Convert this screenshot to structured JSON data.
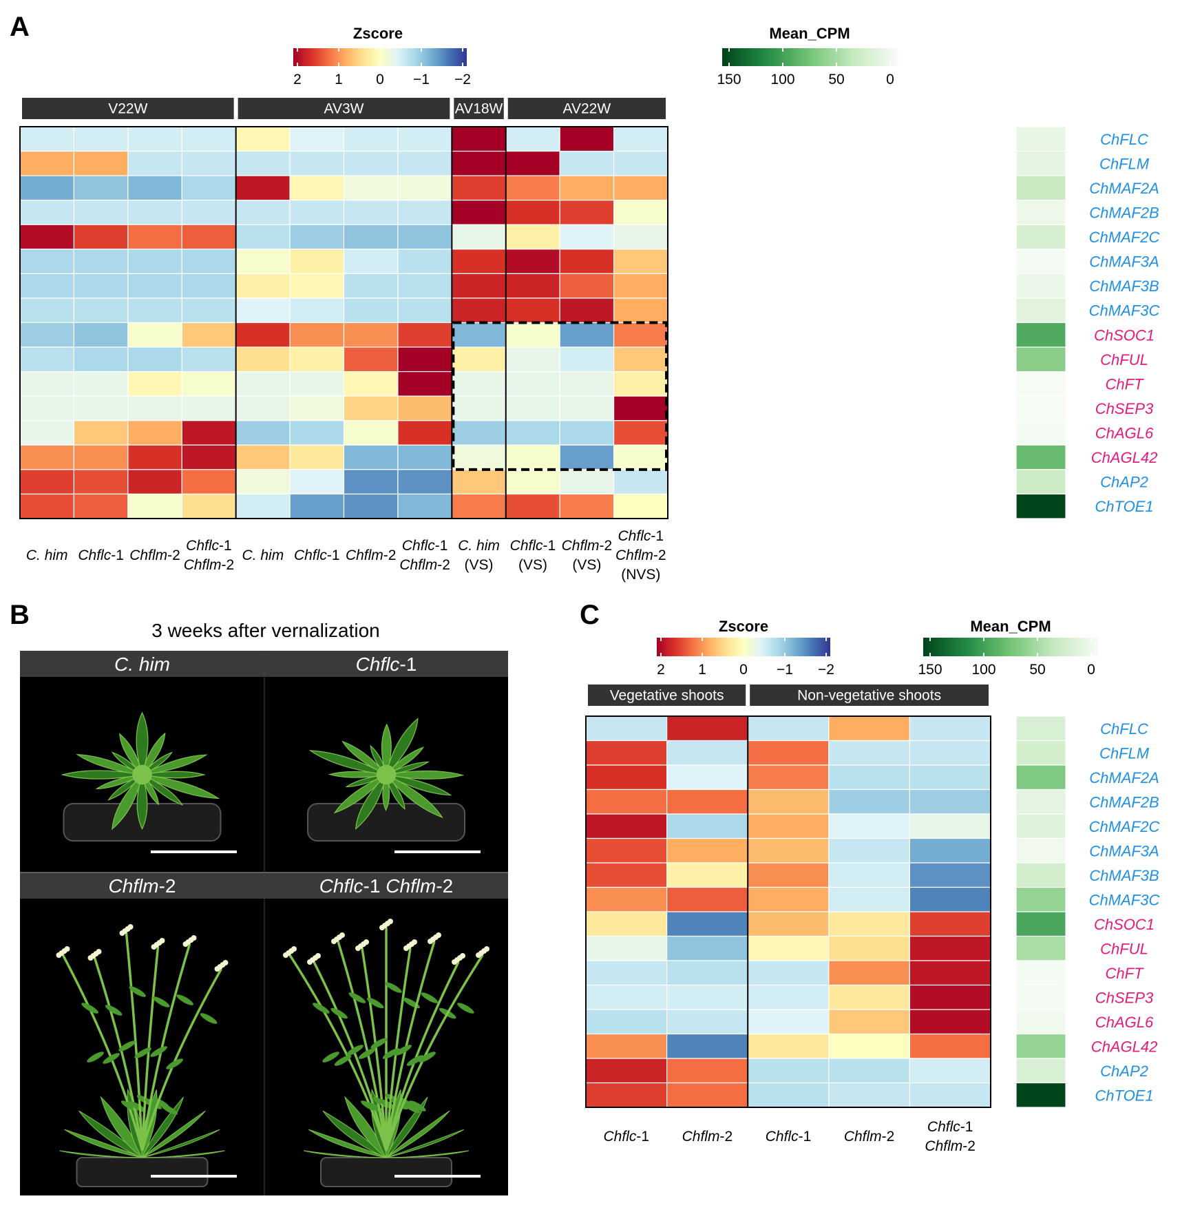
{
  "panel_letters": {
    "a": "A",
    "b": "B",
    "c": "C"
  },
  "legends": {
    "zscore_title": "Zscore",
    "zscore_ticks": [
      "2",
      "1",
      "0",
      "−1",
      "−2"
    ],
    "cpm_title": "Mean_CPM",
    "cpm_ticks": [
      "150",
      "100",
      "50",
      "0"
    ]
  },
  "colors": {
    "zscore_scale": [
      "#a50026",
      "#d73027",
      "#f46d43",
      "#fdae61",
      "#fee090",
      "#ffffbf",
      "#e0f3f8",
      "#abd9e9",
      "#74add1",
      "#4575b4",
      "#313695"
    ],
    "cpm_scale": [
      "#f7fcf5",
      "#c7e9c0",
      "#74c476",
      "#238b45",
      "#00441b"
    ],
    "gene_blue": "#1f8fe6",
    "gene_pink": "#e6197d",
    "strip": "#333333"
  },
  "panel_b": {
    "title": "3 weeks after vernalization",
    "photos": [
      {
        "label_parts": [
          {
            "t": "C. him",
            "i": true
          }
        ],
        "type": "rosette"
      },
      {
        "label_parts": [
          {
            "t": "Chflc",
            "i": true
          },
          {
            "t": "-1",
            "i": false
          }
        ],
        "type": "rosette"
      },
      {
        "label_parts": [
          {
            "t": "Chflm",
            "i": true
          },
          {
            "t": "-2",
            "i": false
          }
        ],
        "type": "flowering"
      },
      {
        "label_parts": [
          {
            "t": "Chflc",
            "i": true
          },
          {
            "t": "-1 ",
            "i": false
          },
          {
            "t": "Chflm",
            "i": true
          },
          {
            "t": "-2",
            "i": false
          }
        ],
        "type": "flowering"
      }
    ]
  },
  "chart_data": [
    {
      "type": "heatmap",
      "panel": "A",
      "groups": [
        {
          "label": "V22W",
          "columns": 4
        },
        {
          "label": "AV3W",
          "columns": 4
        },
        {
          "label": "AV18W",
          "columns": 1
        },
        {
          "label": "AV22W",
          "columns": 3
        }
      ],
      "columns": [
        {
          "lines": [
            [
              {
                "t": "C. him",
                "i": true
              }
            ]
          ]
        },
        {
          "lines": [
            [
              {
                "t": "Chflc",
                "i": true
              },
              {
                "t": "-1",
                "i": false
              }
            ]
          ]
        },
        {
          "lines": [
            [
              {
                "t": "Chflm",
                "i": true
              },
              {
                "t": "-2",
                "i": false
              }
            ]
          ]
        },
        {
          "lines": [
            [
              {
                "t": "Chflc",
                "i": true
              },
              {
                "t": "-1",
                "i": false
              }
            ],
            [
              {
                "t": "Chflm",
                "i": true
              },
              {
                "t": "-2",
                "i": false
              }
            ]
          ]
        },
        {
          "lines": [
            [
              {
                "t": "C. him",
                "i": true
              }
            ]
          ]
        },
        {
          "lines": [
            [
              {
                "t": "Chflc",
                "i": true
              },
              {
                "t": "-1",
                "i": false
              }
            ]
          ]
        },
        {
          "lines": [
            [
              {
                "t": "Chflm",
                "i": true
              },
              {
                "t": "-2",
                "i": false
              }
            ]
          ]
        },
        {
          "lines": [
            [
              {
                "t": "Chflc",
                "i": true
              },
              {
                "t": "-1",
                "i": false
              }
            ],
            [
              {
                "t": "Chflm",
                "i": true
              },
              {
                "t": "-2",
                "i": false
              }
            ]
          ]
        },
        {
          "lines": [
            [
              {
                "t": "C. him",
                "i": true
              }
            ],
            [
              {
                "t": "(VS)",
                "i": false
              }
            ]
          ]
        },
        {
          "lines": [
            [
              {
                "t": "Chflc",
                "i": true
              },
              {
                "t": "-1",
                "i": false
              }
            ],
            [
              {
                "t": "(VS)",
                "i": false
              }
            ]
          ]
        },
        {
          "lines": [
            [
              {
                "t": "Chflm",
                "i": true
              },
              {
                "t": "-2",
                "i": false
              }
            ],
            [
              {
                "t": "(VS)",
                "i": false
              }
            ]
          ]
        },
        {
          "lines": [
            [
              {
                "t": "Chflc",
                "i": true
              },
              {
                "t": "-1",
                "i": false
              }
            ],
            [
              {
                "t": "Chflm",
                "i": true
              },
              {
                "t": "-2",
                "i": false
              }
            ],
            [
              {
                "t": "(NVS)",
                "i": false
              }
            ]
          ]
        }
      ],
      "genes": [
        "ChFLC",
        "ChFLM",
        "ChMAF2A",
        "ChMAF2B",
        "ChMAF2C",
        "ChMAF3A",
        "ChMAF3B",
        "ChMAF3C",
        "ChSOC1",
        "ChFUL",
        "ChFT",
        "ChSEP3",
        "ChAGL6",
        "ChAGL42",
        "ChAP2",
        "ChTOE1"
      ],
      "gene_groups": [
        "blue",
        "blue",
        "blue",
        "blue",
        "blue",
        "blue",
        "blue",
        "blue",
        "pink",
        "pink",
        "pink",
        "pink",
        "pink",
        "pink",
        "blue",
        "blue"
      ],
      "zscore": [
        [
          -0.5,
          -0.5,
          -0.5,
          -0.5,
          0.1,
          -0.4,
          -0.5,
          -0.5,
          2.0,
          -0.5,
          2.0,
          -0.5
        ],
        [
          0.8,
          0.8,
          -0.6,
          -0.6,
          -0.6,
          -0.6,
          -0.6,
          -0.6,
          2.0,
          2.0,
          -0.6,
          -0.6
        ],
        [
          -1.2,
          -1.0,
          -1.1,
          -0.8,
          1.8,
          0.1,
          -0.2,
          -0.2,
          1.5,
          1.1,
          0.8,
          0.8
        ],
        [
          -0.6,
          -0.6,
          -0.6,
          -0.6,
          -0.6,
          -0.6,
          -0.6,
          -0.6,
          2.0,
          1.6,
          1.5,
          -0.1
        ],
        [
          1.9,
          1.5,
          1.2,
          1.3,
          -0.7,
          -0.9,
          -1.0,
          -1.0,
          -0.3,
          0.2,
          -0.4,
          -0.3
        ],
        [
          -0.8,
          -0.8,
          -0.8,
          -0.8,
          -0.1,
          0.2,
          -0.5,
          -0.7,
          1.6,
          1.9,
          1.6,
          0.6
        ],
        [
          -0.8,
          -0.8,
          -0.8,
          -0.8,
          0.2,
          0.1,
          -0.7,
          -0.7,
          1.7,
          1.7,
          1.3,
          0.8
        ],
        [
          -0.7,
          -0.7,
          -0.7,
          -0.7,
          -0.4,
          -0.5,
          -0.7,
          -0.7,
          1.7,
          1.6,
          1.8,
          0.8
        ],
        [
          -0.9,
          -1.0,
          -0.1,
          0.6,
          1.6,
          1.0,
          1.0,
          1.5,
          -1.1,
          -0.1,
          -1.3,
          1.1
        ],
        [
          -0.7,
          -0.8,
          -0.8,
          -0.7,
          0.4,
          0.2,
          1.3,
          2.0,
          0.2,
          -0.3,
          -0.5,
          0.6
        ],
        [
          -0.3,
          -0.3,
          0.1,
          -0.1,
          -0.3,
          -0.3,
          0.1,
          2.0,
          -0.3,
          -0.3,
          -0.3,
          0.2
        ],
        [
          -0.3,
          -0.3,
          -0.3,
          -0.3,
          -0.3,
          -0.2,
          0.5,
          0.7,
          -0.3,
          -0.3,
          -0.3,
          2.0
        ],
        [
          -0.3,
          0.6,
          0.8,
          1.8,
          -0.9,
          -0.8,
          -0.1,
          1.6,
          -0.9,
          -0.8,
          -0.8,
          1.4
        ],
        [
          1.0,
          1.0,
          1.6,
          1.8,
          0.6,
          0.3,
          -1.1,
          -1.1,
          -0.2,
          -0.1,
          -1.3,
          -0.1
        ],
        [
          1.5,
          1.4,
          1.7,
          1.2,
          -0.2,
          -0.4,
          -1.4,
          -1.4,
          0.6,
          -0.1,
          -0.3,
          -0.6
        ],
        [
          1.4,
          1.3,
          -0.1,
          0.4,
          -0.5,
          -1.3,
          -1.4,
          -1.1,
          1.1,
          1.4,
          1.1,
          0.0
        ]
      ],
      "mean_cpm": [
        12,
        14,
        35,
        8,
        26,
        3,
        9,
        17,
        92,
        65,
        1,
        1,
        2,
        80,
        33,
        150
      ],
      "highlight_box": {
        "rows": [
          8,
          13
        ],
        "cols": [
          8,
          11
        ]
      }
    },
    {
      "type": "heatmap",
      "panel": "C",
      "groups": [
        {
          "label": "Vegetative shoots",
          "columns": 2
        },
        {
          "label": "Non-vegetative shoots",
          "columns": 3
        }
      ],
      "columns": [
        {
          "lines": [
            [
              {
                "t": "Chflc",
                "i": true
              },
              {
                "t": "-1",
                "i": false
              }
            ]
          ]
        },
        {
          "lines": [
            [
              {
                "t": "Chflm",
                "i": true
              },
              {
                "t": "-2",
                "i": false
              }
            ]
          ]
        },
        {
          "lines": [
            [
              {
                "t": "Chflc",
                "i": true
              },
              {
                "t": "-1",
                "i": false
              }
            ]
          ]
        },
        {
          "lines": [
            [
              {
                "t": "Chflm",
                "i": true
              },
              {
                "t": "-2",
                "i": false
              }
            ]
          ]
        },
        {
          "lines": [
            [
              {
                "t": "Chflc",
                "i": true
              },
              {
                "t": "-1",
                "i": false
              }
            ],
            [
              {
                "t": "Chflm",
                "i": true
              },
              {
                "t": "-2",
                "i": false
              }
            ]
          ]
        }
      ],
      "genes": [
        "ChFLC",
        "ChFLM",
        "ChMAF2A",
        "ChMAF2B",
        "ChMAF2C",
        "ChMAF3A",
        "ChMAF3B",
        "ChMAF3C",
        "ChSOC1",
        "ChFUL",
        "ChFT",
        "ChSEP3",
        "ChAGL6",
        "ChAGL42",
        "ChAP2",
        "ChTOE1"
      ],
      "gene_groups": [
        "blue",
        "blue",
        "blue",
        "blue",
        "blue",
        "blue",
        "blue",
        "blue",
        "pink",
        "pink",
        "pink",
        "pink",
        "pink",
        "pink",
        "blue",
        "blue"
      ],
      "zscore": [
        [
          -0.6,
          1.7,
          -0.6,
          0.8,
          -0.6
        ],
        [
          1.5,
          -0.6,
          1.2,
          -0.6,
          -0.6
        ],
        [
          1.6,
          -0.4,
          1.1,
          -0.7,
          -0.7
        ],
        [
          1.2,
          1.2,
          0.7,
          -0.9,
          -0.9
        ],
        [
          1.8,
          -0.8,
          0.8,
          -0.4,
          -0.3
        ],
        [
          1.4,
          0.8,
          0.7,
          -0.6,
          -1.2
        ],
        [
          1.4,
          0.2,
          1.0,
          -0.5,
          -1.4
        ],
        [
          1.0,
          1.3,
          0.8,
          -0.5,
          -1.5
        ],
        [
          0.3,
          -1.5,
          0.7,
          0.3,
          1.5
        ],
        [
          -0.3,
          -1.0,
          0.1,
          0.4,
          1.8
        ],
        [
          -0.6,
          -0.7,
          -0.6,
          1.0,
          1.8
        ],
        [
          -0.5,
          -0.5,
          -0.5,
          0.3,
          1.9
        ],
        [
          -0.7,
          -0.6,
          -0.4,
          0.6,
          1.9
        ],
        [
          1.0,
          -1.5,
          0.3,
          0.0,
          1.2
        ],
        [
          1.7,
          1.2,
          -0.7,
          -0.7,
          -0.5
        ],
        [
          1.5,
          1.2,
          -0.7,
          -0.6,
          -0.6
        ]
      ],
      "mean_cpm": [
        25,
        28,
        70,
        15,
        20,
        5,
        30,
        60,
        95,
        50,
        2,
        3,
        4,
        60,
        25,
        150
      ]
    }
  ]
}
